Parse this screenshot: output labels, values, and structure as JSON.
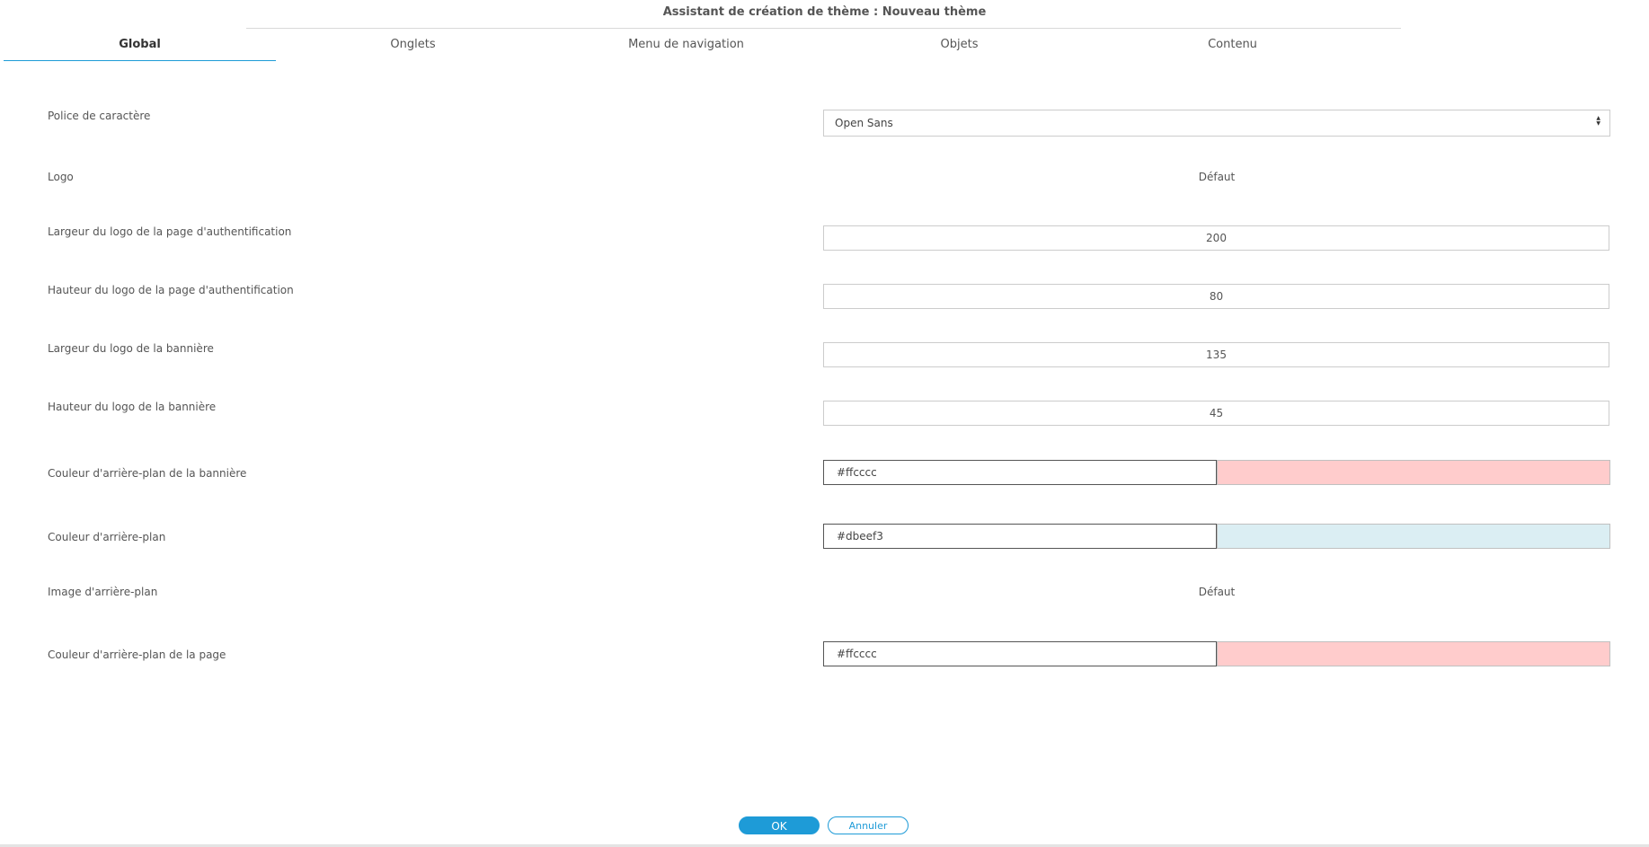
{
  "window": {
    "title": "Assistant de création de thème : Nouveau thème"
  },
  "tabs": [
    {
      "label": "Global",
      "active": true
    },
    {
      "label": "Onglets",
      "active": false
    },
    {
      "label": "Menu de navigation",
      "active": false
    },
    {
      "label": "Objets",
      "active": false
    },
    {
      "label": "Contenu",
      "active": false
    }
  ],
  "form": {
    "font": {
      "label": "Police de caractère",
      "value": "Open Sans",
      "icon": "sort-arrows-icon"
    },
    "logo": {
      "label": "Logo",
      "value": "Défaut"
    },
    "auth_logo_width": {
      "label": "Largeur du logo de la page d'authentification",
      "value": "200"
    },
    "auth_logo_height": {
      "label": "Hauteur du logo de la page d'authentification",
      "value": "80"
    },
    "banner_logo_width": {
      "label": "Largeur du logo de la bannière",
      "value": "135"
    },
    "banner_logo_height": {
      "label": "Hauteur du logo de la bannière",
      "value": "45"
    },
    "banner_bg_color": {
      "label": "Couleur d'arrière-plan de la bannière",
      "value": "#ffcccc",
      "swatch": "#ffcccc"
    },
    "bg_color": {
      "label": "Couleur d'arrière-plan",
      "value": "#dbeef3",
      "swatch": "#dbeef3"
    },
    "bg_image": {
      "label": "Image d'arrière-plan",
      "value": "Défaut"
    },
    "page_bg_color": {
      "label": "Couleur d'arrière-plan de la page",
      "value": "#ffcccc",
      "swatch": "#ffcccc"
    }
  },
  "buttons": {
    "ok": "OK",
    "cancel": "Annuler"
  },
  "colors": {
    "accent": "#1e9bd7"
  }
}
